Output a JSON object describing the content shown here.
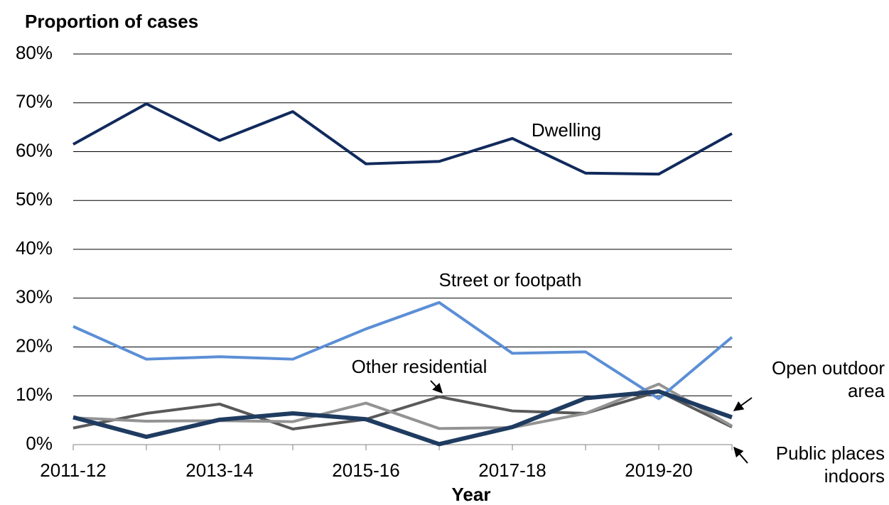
{
  "chart_data": {
    "type": "line",
    "title": "Proportion of cases",
    "xlabel": "Year",
    "categories": [
      "2011-12",
      null,
      "2013-14",
      null,
      "2015-16",
      null,
      "2017-18",
      null,
      "2019-20",
      null
    ],
    "series": [
      {
        "name": "Dwelling",
        "color": "#112a5c",
        "values": [
          61.5,
          69.8,
          62.3,
          68.2,
          57.5,
          58.0,
          62.7,
          55.6,
          55.4,
          63.7
        ]
      },
      {
        "name": "Street or footpath",
        "color": "#5b8fd6",
        "values": [
          24.2,
          17.5,
          18.0,
          17.5,
          23.7,
          29.1,
          18.7,
          19.0,
          9.4,
          22.0
        ]
      },
      {
        "name": "Other residential",
        "color": "#595959",
        "values": [
          3.4,
          6.4,
          8.3,
          3.2,
          5.2,
          9.8,
          6.9,
          6.4,
          10.9,
          3.6
        ]
      },
      {
        "name": "Public places indoors",
        "color": "#939393",
        "values": [
          5.5,
          4.8,
          4.9,
          4.7,
          8.5,
          3.3,
          3.5,
          6.4,
          12.4,
          3.8
        ]
      },
      {
        "name": "Open outdoor area",
        "color": "#1f3b60",
        "values": [
          5.6,
          1.6,
          5.1,
          6.4,
          5.2,
          0.1,
          3.6,
          9.5,
          10.9,
          5.6
        ]
      }
    ],
    "ylim": [
      0,
      80
    ],
    "yticks": [
      {
        "value": 0,
        "label": "0%"
      },
      {
        "value": 10,
        "label": "10%"
      },
      {
        "value": 20,
        "label": "20%"
      },
      {
        "value": 30,
        "label": "30%"
      },
      {
        "value": 40,
        "label": "40%"
      },
      {
        "value": 50,
        "label": "50%"
      },
      {
        "value": 60,
        "label": "60%"
      },
      {
        "value": 70,
        "label": "70%"
      },
      {
        "value": 80,
        "label": "80%"
      }
    ],
    "grid": true
  }
}
